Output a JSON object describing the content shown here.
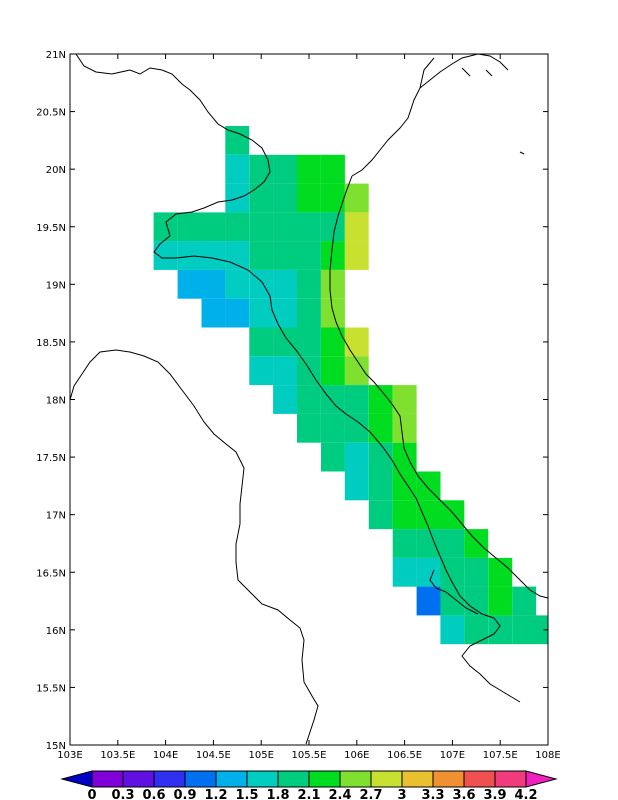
{
  "map": {
    "lon_range": [
      103,
      108
    ],
    "lat_range": [
      15,
      21
    ],
    "x_ticks": [
      "103E",
      "103.5E",
      "104E",
      "104.5E",
      "105E",
      "105.5E",
      "106E",
      "106.5E",
      "107E",
      "107.5E",
      "108E"
    ],
    "y_ticks": [
      "15N",
      "15.5N",
      "16N",
      "16.5N",
      "17N",
      "17.5N",
      "18N",
      "18.5N",
      "19N",
      "19.5N",
      "20N",
      "20.5N",
      "21N"
    ],
    "cell_size_deg": 0.25
  },
  "colorbar": {
    "labels": [
      "0",
      "0.3",
      "0.6",
      "0.9",
      "1.2",
      "1.5",
      "1.8",
      "2.1",
      "2.4",
      "2.7",
      "3",
      "3.3",
      "3.6",
      "3.9",
      "4.2"
    ],
    "colors": [
      "#0000c8",
      "#8000d8",
      "#6010e0",
      "#3030f0",
      "#0070f0",
      "#00b0e8",
      "#00ccc0",
      "#00cc80",
      "#00dd20",
      "#80e030",
      "#c8e030",
      "#e8c030",
      "#f09030",
      "#f05050",
      "#f03c7c",
      "#f020c0"
    ]
  },
  "chart_data": {
    "type": "heatmap",
    "xlabel": "",
    "ylabel": "",
    "xlim": [
      103,
      108
    ],
    "ylim": [
      15,
      21
    ],
    "cells": [
      {
        "lon": 104.75,
        "lat": 20.25,
        "v": 1.9
      },
      {
        "lon": 104.75,
        "lat": 20.0,
        "v": 1.6
      },
      {
        "lon": 105.0,
        "lat": 20.0,
        "v": 1.9
      },
      {
        "lon": 105.25,
        "lat": 20.0,
        "v": 1.9
      },
      {
        "lon": 105.5,
        "lat": 20.0,
        "v": 2.2
      },
      {
        "lon": 105.75,
        "lat": 20.0,
        "v": 2.2
      },
      {
        "lon": 104.75,
        "lat": 19.75,
        "v": 1.6
      },
      {
        "lon": 105.0,
        "lat": 19.75,
        "v": 1.9
      },
      {
        "lon": 105.25,
        "lat": 19.75,
        "v": 1.9
      },
      {
        "lon": 105.5,
        "lat": 19.75,
        "v": 2.2
      },
      {
        "lon": 105.75,
        "lat": 19.75,
        "v": 2.2
      },
      {
        "lon": 106.0,
        "lat": 19.75,
        "v": 2.5
      },
      {
        "lon": 104.0,
        "lat": 19.5,
        "v": 1.9
      },
      {
        "lon": 104.25,
        "lat": 19.5,
        "v": 1.9
      },
      {
        "lon": 104.5,
        "lat": 19.5,
        "v": 1.9
      },
      {
        "lon": 104.75,
        "lat": 19.5,
        "v": 1.9
      },
      {
        "lon": 105.0,
        "lat": 19.5,
        "v": 1.9
      },
      {
        "lon": 105.25,
        "lat": 19.5,
        "v": 1.9
      },
      {
        "lon": 105.5,
        "lat": 19.5,
        "v": 1.9
      },
      {
        "lon": 105.75,
        "lat": 19.5,
        "v": 1.9
      },
      {
        "lon": 106.0,
        "lat": 19.5,
        "v": 2.8
      },
      {
        "lon": 104.0,
        "lat": 19.25,
        "v": 1.6
      },
      {
        "lon": 104.25,
        "lat": 19.25,
        "v": 1.6
      },
      {
        "lon": 104.5,
        "lat": 19.25,
        "v": 1.6
      },
      {
        "lon": 104.75,
        "lat": 19.25,
        "v": 1.6
      },
      {
        "lon": 105.0,
        "lat": 19.25,
        "v": 1.9
      },
      {
        "lon": 105.25,
        "lat": 19.25,
        "v": 1.9
      },
      {
        "lon": 105.5,
        "lat": 19.25,
        "v": 1.9
      },
      {
        "lon": 105.75,
        "lat": 19.25,
        "v": 2.2
      },
      {
        "lon": 106.0,
        "lat": 19.25,
        "v": 2.8
      },
      {
        "lon": 104.25,
        "lat": 19.0,
        "v": 1.3
      },
      {
        "lon": 104.5,
        "lat": 19.0,
        "v": 1.3
      },
      {
        "lon": 104.75,
        "lat": 19.0,
        "v": 1.6
      },
      {
        "lon": 105.0,
        "lat": 19.0,
        "v": 1.6
      },
      {
        "lon": 105.25,
        "lat": 19.0,
        "v": 1.6
      },
      {
        "lon": 105.5,
        "lat": 19.0,
        "v": 1.9
      },
      {
        "lon": 105.75,
        "lat": 19.0,
        "v": 2.5
      },
      {
        "lon": 104.5,
        "lat": 18.75,
        "v": 1.3
      },
      {
        "lon": 104.75,
        "lat": 18.75,
        "v": 1.3
      },
      {
        "lon": 105.0,
        "lat": 18.75,
        "v": 1.6
      },
      {
        "lon": 105.25,
        "lat": 18.75,
        "v": 1.6
      },
      {
        "lon": 105.5,
        "lat": 18.75,
        "v": 1.9
      },
      {
        "lon": 105.75,
        "lat": 18.75,
        "v": 2.5
      },
      {
        "lon": 105.0,
        "lat": 18.5,
        "v": 1.9
      },
      {
        "lon": 105.25,
        "lat": 18.5,
        "v": 1.9
      },
      {
        "lon": 105.5,
        "lat": 18.5,
        "v": 1.9
      },
      {
        "lon": 105.75,
        "lat": 18.5,
        "v": 2.2
      },
      {
        "lon": 106.0,
        "lat": 18.5,
        "v": 2.8
      },
      {
        "lon": 105.0,
        "lat": 18.25,
        "v": 1.6
      },
      {
        "lon": 105.25,
        "lat": 18.25,
        "v": 1.6
      },
      {
        "lon": 105.5,
        "lat": 18.25,
        "v": 1.9
      },
      {
        "lon": 105.75,
        "lat": 18.25,
        "v": 2.2
      },
      {
        "lon": 106.0,
        "lat": 18.25,
        "v": 2.5
      },
      {
        "lon": 105.25,
        "lat": 18.0,
        "v": 1.6
      },
      {
        "lon": 105.5,
        "lat": 18.0,
        "v": 1.9
      },
      {
        "lon": 105.75,
        "lat": 18.0,
        "v": 1.9
      },
      {
        "lon": 106.0,
        "lat": 18.0,
        "v": 1.9
      },
      {
        "lon": 106.25,
        "lat": 18.0,
        "v": 2.2
      },
      {
        "lon": 106.5,
        "lat": 18.0,
        "v": 2.5
      },
      {
        "lon": 105.5,
        "lat": 17.75,
        "v": 1.9
      },
      {
        "lon": 105.75,
        "lat": 17.75,
        "v": 1.9
      },
      {
        "lon": 106.0,
        "lat": 17.75,
        "v": 1.9
      },
      {
        "lon": 106.25,
        "lat": 17.75,
        "v": 2.2
      },
      {
        "lon": 106.5,
        "lat": 17.75,
        "v": 2.5
      },
      {
        "lon": 105.75,
        "lat": 17.5,
        "v": 1.9
      },
      {
        "lon": 106.0,
        "lat": 17.5,
        "v": 1.6
      },
      {
        "lon": 106.25,
        "lat": 17.5,
        "v": 1.9
      },
      {
        "lon": 106.5,
        "lat": 17.5,
        "v": 2.2
      },
      {
        "lon": 106.0,
        "lat": 17.25,
        "v": 1.6
      },
      {
        "lon": 106.25,
        "lat": 17.25,
        "v": 1.9
      },
      {
        "lon": 106.5,
        "lat": 17.25,
        "v": 2.2
      },
      {
        "lon": 106.75,
        "lat": 17.25,
        "v": 2.2
      },
      {
        "lon": 106.25,
        "lat": 17.0,
        "v": 1.9
      },
      {
        "lon": 106.5,
        "lat": 17.0,
        "v": 2.2
      },
      {
        "lon": 106.75,
        "lat": 17.0,
        "v": 2.2
      },
      {
        "lon": 107.0,
        "lat": 17.0,
        "v": 2.2
      },
      {
        "lon": 106.5,
        "lat": 16.75,
        "v": 1.9
      },
      {
        "lon": 106.75,
        "lat": 16.75,
        "v": 1.9
      },
      {
        "lon": 107.0,
        "lat": 16.75,
        "v": 1.9
      },
      {
        "lon": 107.25,
        "lat": 16.75,
        "v": 2.2
      },
      {
        "lon": 106.5,
        "lat": 16.5,
        "v": 1.6
      },
      {
        "lon": 106.75,
        "lat": 16.5,
        "v": 1.6
      },
      {
        "lon": 107.0,
        "lat": 16.5,
        "v": 1.9
      },
      {
        "lon": 107.25,
        "lat": 16.5,
        "v": 1.9
      },
      {
        "lon": 107.5,
        "lat": 16.5,
        "v": 2.2
      },
      {
        "lon": 106.75,
        "lat": 16.25,
        "v": 1.0
      },
      {
        "lon": 107.0,
        "lat": 16.25,
        "v": 1.9
      },
      {
        "lon": 107.25,
        "lat": 16.25,
        "v": 1.9
      },
      {
        "lon": 107.5,
        "lat": 16.25,
        "v": 2.2
      },
      {
        "lon": 107.75,
        "lat": 16.25,
        "v": 1.9
      },
      {
        "lon": 107.0,
        "lat": 16.0,
        "v": 1.6
      },
      {
        "lon": 107.25,
        "lat": 16.0,
        "v": 1.9
      },
      {
        "lon": 107.5,
        "lat": 16.0,
        "v": 1.9
      },
      {
        "lon": 107.75,
        "lat": 16.0,
        "v": 1.9
      },
      {
        "lon": 108.0,
        "lat": 16.0,
        "v": 1.9
      }
    ]
  }
}
